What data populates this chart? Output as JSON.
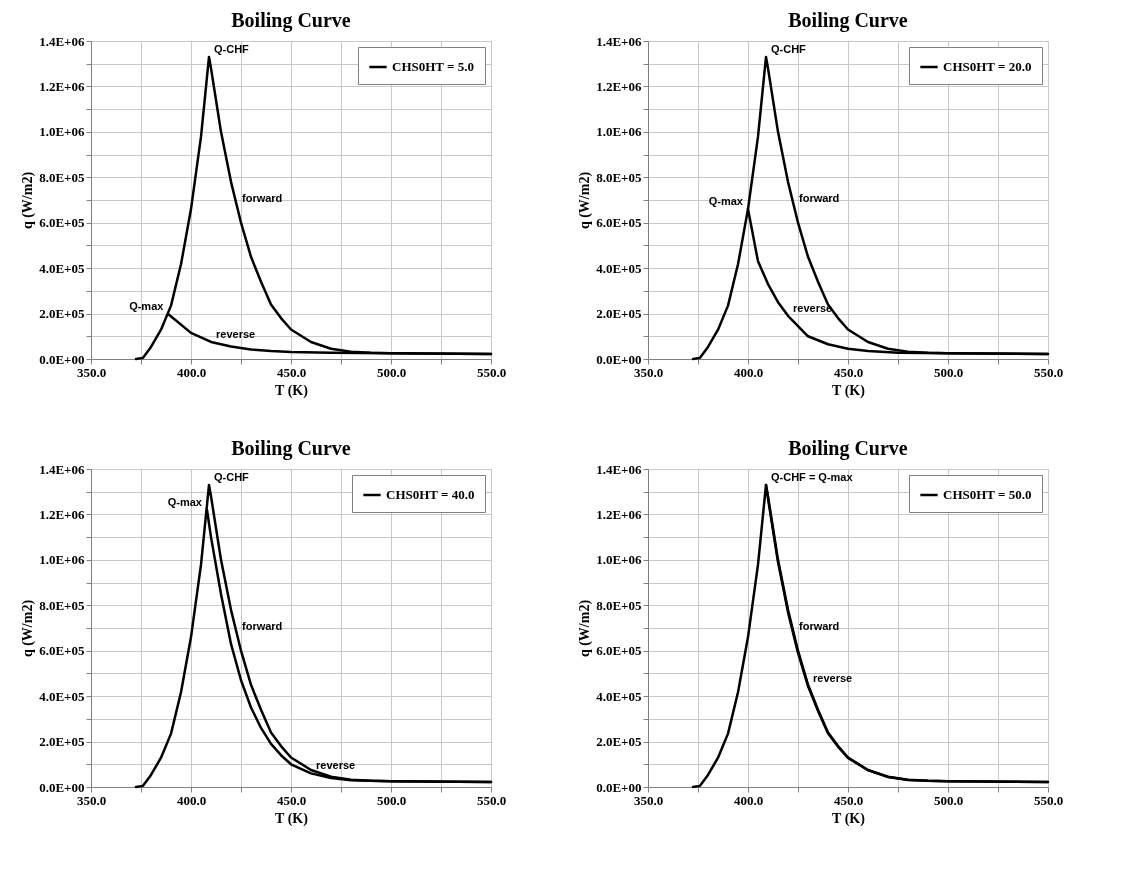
{
  "chart_data": [
    {
      "type": "line",
      "title": "Boiling Curve",
      "xlabel": "T (K)",
      "ylabel": "q (W/m2)",
      "legend": "top right",
      "grid": true,
      "marker": "none",
      "line_style": "solid",
      "xlim": [
        350,
        550
      ],
      "xticks": [
        {
          "value": 350,
          "label": "350.0"
        },
        {
          "value": 375,
          "label": null
        },
        {
          "value": 400,
          "label": "400.0"
        },
        {
          "value": 425,
          "label": null
        },
        {
          "value": 450,
          "label": "450.0"
        },
        {
          "value": 475,
          "label": null
        },
        {
          "value": 500,
          "label": "500.0"
        },
        {
          "value": 525,
          "label": null
        },
        {
          "value": 550,
          "label": "550.0"
        }
      ],
      "ylim": [
        0,
        1400000
      ],
      "yticks": [
        {
          "value": 0,
          "label": "0.0E+00"
        },
        {
          "value": 100000,
          "label": null
        },
        {
          "value": 200000,
          "label": "2.0E+05"
        },
        {
          "value": 300000,
          "label": null
        },
        {
          "value": 400000,
          "label": "4.0E+05"
        },
        {
          "value": 500000,
          "label": null
        },
        {
          "value": 600000,
          "label": "6.0E+05"
        },
        {
          "value": 700000,
          "label": null
        },
        {
          "value": 800000,
          "label": "8.0E+05"
        },
        {
          "value": 900000,
          "label": null
        },
        {
          "value": 1000000,
          "label": "1.0E+06"
        },
        {
          "value": 1100000,
          "label": null
        },
        {
          "value": 1200000,
          "label": "1.2E+06"
        },
        {
          "value": 1300000,
          "label": null
        },
        {
          "value": 1400000,
          "label": "1.4E+06"
        }
      ],
      "series": [
        {
          "name": "CHS0HT = 5.0",
          "color": "#000000",
          "x": [
            372.5,
            376,
            380,
            385,
            390,
            395,
            400,
            405,
            409,
            410,
            415,
            420,
            425,
            430,
            435,
            440,
            445,
            450,
            460,
            470,
            480,
            490,
            500,
            550
          ],
          "values": [
            0,
            5000,
            53000,
            129000,
            235000,
            417000,
            660000,
            979000,
            1330000,
            1280000,
            1000000,
            780000,
            600000,
            450000,
            340000,
            240000,
            180000,
            130000,
            75000,
            45000,
            32000,
            27000,
            25000,
            22000
          ]
        },
        {
          "color": "#000000",
          "x": [
            388.7,
            400,
            410,
            420,
            430,
            440,
            450,
            470,
            500,
            550
          ],
          "values": [
            197000,
            115000,
            75000,
            55000,
            42000,
            35000,
            31000,
            27000,
            25000,
            22000
          ]
        }
      ],
      "annotations": [
        {
          "text": "Q-CHF",
          "x": 409,
          "y": 1330000
        },
        {
          "text": "forward",
          "x": 423,
          "y": 672000
        },
        {
          "text": "Q-max",
          "x": 388.7,
          "y": 197000
        },
        {
          "text": "reverse",
          "x": 410,
          "y": 75000
        }
      ]
    },
    {
      "type": "line",
      "title": "Boiling Curve",
      "xlabel": "T (K)",
      "ylabel": "q (W/m2)",
      "legend": "top right",
      "grid": true,
      "marker": "none",
      "line_style": "solid",
      "xlim": [
        350,
        550
      ],
      "xticks": [
        {
          "value": 350,
          "label": "350.0"
        },
        {
          "value": 375,
          "label": null
        },
        {
          "value": 400,
          "label": "400.0"
        },
        {
          "value": 425,
          "label": null
        },
        {
          "value": 450,
          "label": "450.0"
        },
        {
          "value": 475,
          "label": null
        },
        {
          "value": 500,
          "label": "500.0"
        },
        {
          "value": 525,
          "label": null
        },
        {
          "value": 550,
          "label": "550.0"
        }
      ],
      "ylim": [
        0,
        1400000
      ],
      "yticks": [
        {
          "value": 0,
          "label": "0.0E+00"
        },
        {
          "value": 100000,
          "label": null
        },
        {
          "value": 200000,
          "label": "2.0E+05"
        },
        {
          "value": 300000,
          "label": null
        },
        {
          "value": 400000,
          "label": "4.0E+05"
        },
        {
          "value": 500000,
          "label": null
        },
        {
          "value": 600000,
          "label": "6.0E+05"
        },
        {
          "value": 700000,
          "label": null
        },
        {
          "value": 800000,
          "label": "8.0E+05"
        },
        {
          "value": 900000,
          "label": null
        },
        {
          "value": 1000000,
          "label": "1.0E+06"
        },
        {
          "value": 1100000,
          "label": null
        },
        {
          "value": 1200000,
          "label": "1.2E+06"
        },
        {
          "value": 1300000,
          "label": null
        },
        {
          "value": 1400000,
          "label": "1.4E+06"
        }
      ],
      "series": [
        {
          "name": "CHS0HT = 20.0",
          "color": "#000000",
          "x": [
            372.5,
            376,
            380,
            385,
            390,
            395,
            400,
            405,
            409,
            410,
            415,
            420,
            425,
            430,
            435,
            440,
            445,
            450,
            460,
            470,
            480,
            490,
            500,
            550
          ],
          "values": [
            0,
            5000,
            53000,
            129000,
            235000,
            417000,
            660000,
            979000,
            1330000,
            1280000,
            1000000,
            780000,
            600000,
            450000,
            340000,
            240000,
            180000,
            130000,
            75000,
            45000,
            32000,
            27000,
            25000,
            22000
          ]
        },
        {
          "color": "#000000",
          "x": [
            400,
            405,
            410,
            415,
            420,
            430,
            440,
            450,
            460,
            475,
            500,
            550
          ],
          "values": [
            660000,
            430000,
            330000,
            250000,
            190000,
            100000,
            65000,
            45000,
            35000,
            28000,
            25000,
            22000
          ]
        }
      ],
      "annotations": [
        {
          "text": "Q-CHF",
          "x": 409,
          "y": 1330000
        },
        {
          "text": "Q-max",
          "x": 400,
          "y": 660000
        },
        {
          "text": "forward",
          "x": 423,
          "y": 672000
        },
        {
          "text": "reverse",
          "x": 420,
          "y": 190000
        }
      ]
    },
    {
      "type": "line",
      "title": "Boiling Curve",
      "xlabel": "T (K)",
      "ylabel": "q (W/m2)",
      "legend": "top right",
      "grid": true,
      "marker": "none",
      "line_style": "solid",
      "xlim": [
        350,
        550
      ],
      "xticks": [
        {
          "value": 350,
          "label": "350.0"
        },
        {
          "value": 375,
          "label": null
        },
        {
          "value": 400,
          "label": "400.0"
        },
        {
          "value": 425,
          "label": null
        },
        {
          "value": 450,
          "label": "450.0"
        },
        {
          "value": 475,
          "label": null
        },
        {
          "value": 500,
          "label": "500.0"
        },
        {
          "value": 525,
          "label": null
        },
        {
          "value": 550,
          "label": "550.0"
        }
      ],
      "ylim": [
        0,
        1400000
      ],
      "yticks": [
        {
          "value": 0,
          "label": "0.0E+00"
        },
        {
          "value": 100000,
          "label": null
        },
        {
          "value": 200000,
          "label": "2.0E+05"
        },
        {
          "value": 300000,
          "label": null
        },
        {
          "value": 400000,
          "label": "4.0E+05"
        },
        {
          "value": 500000,
          "label": null
        },
        {
          "value": 600000,
          "label": "6.0E+05"
        },
        {
          "value": 700000,
          "label": null
        },
        {
          "value": 800000,
          "label": "8.0E+05"
        },
        {
          "value": 900000,
          "label": null
        },
        {
          "value": 1000000,
          "label": "1.0E+06"
        },
        {
          "value": 1100000,
          "label": null
        },
        {
          "value": 1200000,
          "label": "1.2E+06"
        },
        {
          "value": 1300000,
          "label": null
        },
        {
          "value": 1400000,
          "label": "1.4E+06"
        }
      ],
      "series": [
        {
          "name": "CHS0HT = 40.0",
          "color": "#000000",
          "x": [
            372.5,
            376,
            380,
            385,
            390,
            395,
            400,
            405,
            409,
            410,
            415,
            420,
            425,
            430,
            435,
            440,
            445,
            450,
            460,
            470,
            480,
            490,
            500,
            550
          ],
          "values": [
            0,
            5000,
            53000,
            129000,
            235000,
            417000,
            660000,
            979000,
            1330000,
            1280000,
            1000000,
            780000,
            600000,
            450000,
            340000,
            240000,
            180000,
            130000,
            75000,
            45000,
            32000,
            27000,
            25000,
            22000
          ]
        },
        {
          "color": "#000000",
          "x": [
            408,
            410,
            415,
            420,
            425,
            430,
            435,
            440,
            445,
            450,
            460,
            470,
            480,
            500,
            550
          ],
          "values": [
            1220000,
            1100000,
            850000,
            630000,
            470000,
            350000,
            260000,
            190000,
            140000,
            100000,
            60000,
            40000,
            30000,
            25000,
            22000
          ]
        }
      ],
      "annotations": [
        {
          "text": "Q-CHF",
          "x": 409,
          "y": 1330000
        },
        {
          "text": "Q-max",
          "x": 408,
          "y": 1220000
        },
        {
          "text": "forward",
          "x": 423,
          "y": 672000
        },
        {
          "text": "reverse",
          "x": 460,
          "y": 60000
        }
      ]
    },
    {
      "type": "line",
      "title": "Boiling Curve",
      "xlabel": "T (K)",
      "ylabel": "q (W/m2)",
      "legend": "top right",
      "grid": true,
      "marker": "none",
      "line_style": "solid",
      "xlim": [
        350,
        550
      ],
      "xticks": [
        {
          "value": 350,
          "label": "350.0"
        },
        {
          "value": 375,
          "label": null
        },
        {
          "value": 400,
          "label": "400.0"
        },
        {
          "value": 425,
          "label": null
        },
        {
          "value": 450,
          "label": "450.0"
        },
        {
          "value": 475,
          "label": null
        },
        {
          "value": 500,
          "label": "500.0"
        },
        {
          "value": 525,
          "label": null
        },
        {
          "value": 550,
          "label": "550.0"
        }
      ],
      "ylim": [
        0,
        1400000
      ],
      "yticks": [
        {
          "value": 0,
          "label": "0.0E+00"
        },
        {
          "value": 100000,
          "label": null
        },
        {
          "value": 200000,
          "label": "2.0E+05"
        },
        {
          "value": 300000,
          "label": null
        },
        {
          "value": 400000,
          "label": "4.0E+05"
        },
        {
          "value": 500000,
          "label": null
        },
        {
          "value": 600000,
          "label": "6.0E+05"
        },
        {
          "value": 700000,
          "label": null
        },
        {
          "value": 800000,
          "label": "8.0E+05"
        },
        {
          "value": 900000,
          "label": null
        },
        {
          "value": 1000000,
          "label": "1.0E+06"
        },
        {
          "value": 1100000,
          "label": null
        },
        {
          "value": 1200000,
          "label": "1.2E+06"
        },
        {
          "value": 1300000,
          "label": null
        },
        {
          "value": 1400000,
          "label": "1.4E+06"
        }
      ],
      "series": [
        {
          "name": "CHS0HT = 50.0",
          "color": "#000000",
          "x": [
            372.5,
            376,
            380,
            385,
            390,
            395,
            400,
            405,
            409,
            410,
            415,
            420,
            425,
            430,
            435,
            440,
            445,
            450,
            460,
            470,
            480,
            490,
            500,
            550
          ],
          "values": [
            0,
            5000,
            53000,
            129000,
            235000,
            417000,
            660000,
            979000,
            1330000,
            1280000,
            1000000,
            780000,
            600000,
            450000,
            340000,
            240000,
            180000,
            130000,
            75000,
            45000,
            32000,
            27000,
            25000,
            22000
          ]
        },
        {
          "color": "#000000",
          "x": [
            409,
            410,
            415,
            420,
            425,
            430,
            435,
            440,
            445,
            450,
            460,
            470,
            480,
            490,
            500,
            550
          ],
          "values": [
            1330000,
            1270000,
            990000,
            770000,
            590000,
            445000,
            335000,
            237000,
            178000,
            128000,
            74000,
            44000,
            31000,
            27000,
            25000,
            22000
          ]
        }
      ],
      "annotations": [
        {
          "text": "Q-CHF = Q-max",
          "x": 409,
          "y": 1330000
        },
        {
          "text": "forward",
          "x": 423,
          "y": 672000
        },
        {
          "text": "reverse",
          "x": 430,
          "y": 445000
        }
      ]
    }
  ]
}
